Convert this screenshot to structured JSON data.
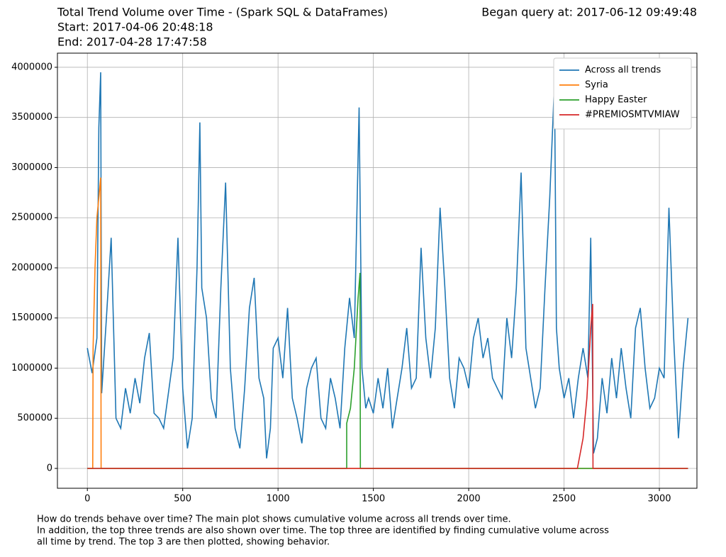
{
  "chart_data": {
    "type": "line",
    "title": "Total Trend Volume over Time - (Spark SQL & DataFrames)",
    "subtitle": "Began query at: 2017-06-12 09:49:48",
    "annotations": [
      "Start: 2017-04-06 20:48:18",
      "End: 2017-04-28 17:47:58"
    ],
    "caption": [
      "How do trends behave over time? The main plot shows cumulative volume across all trends over time.",
      "In addition, the top three trends are also shown over time. The top three are identified by finding cumulative volume across",
      "all time by trend. The top 3 are then plotted, showing behavior."
    ],
    "xlim": [
      -157,
      3197
    ],
    "ylim": [
      -198000,
      4141000
    ],
    "xticks": [
      0,
      500,
      1000,
      1500,
      2000,
      2500,
      3000
    ],
    "yticks": [
      0,
      500000,
      1000000,
      1500000,
      2000000,
      2500000,
      3000000,
      3500000,
      4000000
    ],
    "grid": true,
    "legend": "upper right",
    "series": [
      {
        "name": "Across all trends",
        "color": "#1f77b4",
        "x": [
          0,
          25,
          50,
          60,
          70,
          75,
          100,
          125,
          150,
          175,
          200,
          225,
          250,
          275,
          300,
          325,
          350,
          375,
          400,
          425,
          450,
          475,
          500,
          525,
          550,
          575,
          590,
          600,
          625,
          650,
          675,
          700,
          725,
          750,
          775,
          800,
          825,
          850,
          875,
          900,
          925,
          940,
          960,
          975,
          1000,
          1025,
          1050,
          1075,
          1100,
          1125,
          1150,
          1175,
          1200,
          1225,
          1250,
          1275,
          1300,
          1325,
          1350,
          1375,
          1400,
          1425,
          1440,
          1460,
          1475,
          1500,
          1525,
          1550,
          1575,
          1600,
          1625,
          1650,
          1675,
          1700,
          1725,
          1750,
          1775,
          1800,
          1825,
          1850,
          1875,
          1900,
          1925,
          1950,
          1975,
          2000,
          2025,
          2050,
          2075,
          2100,
          2125,
          2150,
          2175,
          2200,
          2225,
          2250,
          2275,
          2300,
          2325,
          2350,
          2375,
          2400,
          2425,
          2450,
          2460,
          2475,
          2500,
          2525,
          2550,
          2575,
          2600,
          2625,
          2640,
          2655,
          2675,
          2700,
          2725,
          2750,
          2775,
          2800,
          2825,
          2850,
          2875,
          2900,
          2925,
          2950,
          2975,
          3000,
          3025,
          3050,
          3075,
          3100,
          3125,
          3150
        ],
        "values": [
          1200000,
          950000,
          1300000,
          3400000,
          3950000,
          750000,
          1500000,
          2300000,
          500000,
          400000,
          800000,
          550000,
          900000,
          650000,
          1100000,
          1350000,
          550000,
          500000,
          400000,
          750000,
          1100000,
          2300000,
          800000,
          200000,
          500000,
          2000000,
          3450000,
          1800000,
          1500000,
          700000,
          500000,
          1800000,
          2850000,
          1000000,
          400000,
          200000,
          800000,
          1600000,
          1900000,
          900000,
          700000,
          100000,
          400000,
          1200000,
          1300000,
          900000,
          1600000,
          700000,
          500000,
          250000,
          800000,
          1000000,
          1100000,
          500000,
          400000,
          900000,
          700000,
          400000,
          1200000,
          1700000,
          1300000,
          3600000,
          1000000,
          600000,
          700000,
          550000,
          900000,
          600000,
          1000000,
          400000,
          700000,
          1000000,
          1400000,
          800000,
          900000,
          2200000,
          1300000,
          900000,
          1400000,
          2600000,
          1800000,
          900000,
          600000,
          1100000,
          1000000,
          800000,
          1300000,
          1500000,
          1100000,
          1300000,
          900000,
          800000,
          700000,
          1500000,
          1100000,
          1800000,
          2950000,
          1200000,
          900000,
          600000,
          800000,
          1800000,
          2700000,
          3850000,
          1400000,
          1000000,
          700000,
          900000,
          500000,
          900000,
          1200000,
          900000,
          2300000,
          150000,
          300000,
          900000,
          550000,
          1100000,
          700000,
          1200000,
          800000,
          500000,
          1400000,
          1600000,
          1000000,
          600000,
          700000,
          1000000,
          900000,
          2600000,
          1300000,
          300000,
          1000000,
          1500000
        ]
      },
      {
        "name": "Syria",
        "color": "#ff7f0e",
        "x": [
          0,
          28,
          30,
          40,
          50,
          60,
          70,
          72,
          3150
        ],
        "values": [
          0,
          0,
          1200000,
          2000000,
          2500000,
          2700000,
          2900000,
          0,
          0
        ]
      },
      {
        "name": "Happy Easter",
        "color": "#2ca02c",
        "x": [
          0,
          1360,
          1360,
          1380,
          1400,
          1420,
          1430,
          1432,
          3150
        ],
        "values": [
          0,
          0,
          450000,
          600000,
          1000000,
          1700000,
          1950000,
          0,
          0
        ]
      },
      {
        "name": "#PREMIOSMTVMIAW",
        "color": "#d62728",
        "x": [
          0,
          2570,
          2600,
          2620,
          2640,
          2650,
          2652,
          3150
        ],
        "values": [
          0,
          0,
          300000,
          700000,
          1400000,
          1640000,
          0,
          0
        ]
      }
    ]
  }
}
